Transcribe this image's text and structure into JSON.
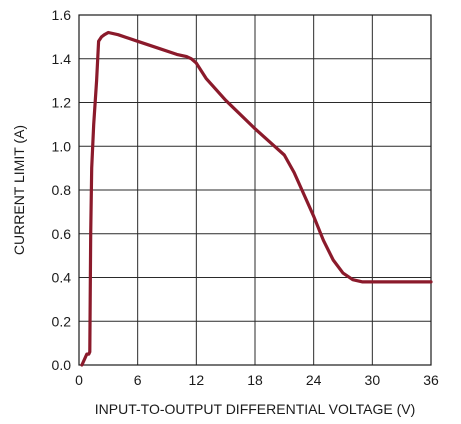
{
  "chart_data": {
    "type": "line",
    "title": "",
    "xlabel": "INPUT-TO-OUTPUT DIFFERENTIAL VOLTAGE (V)",
    "ylabel": "CURRENT LIMIT (A)",
    "xlim": [
      0,
      36
    ],
    "ylim": [
      0,
      1.6
    ],
    "x_ticks": [
      "0",
      "6",
      "12",
      "18",
      "24",
      "30",
      "36"
    ],
    "y_ticks": [
      "0.0",
      "0.2",
      "0.4",
      "0.6",
      "0.8",
      "1.0",
      "1.2",
      "1.4",
      "1.6"
    ],
    "grid": true,
    "legend": "none",
    "series_color": "#8b1a2b",
    "series": [
      {
        "x": [
          0.3,
          0.6,
          0.8,
          1.0,
          1.1,
          1.15,
          1.2,
          1.3,
          1.5,
          1.8,
          2.0,
          2.3,
          2.6,
          3.0,
          4.0,
          6.0,
          8.0,
          10.0,
          11.0,
          11.5,
          12.0,
          13.0,
          15.0,
          18.0,
          20.0,
          21.0,
          22.0,
          23.0,
          24.0,
          25.0,
          26.0,
          27.0,
          28.0,
          29.0,
          30.0,
          32.0,
          34.0,
          36.0
        ],
        "y": [
          0.0,
          0.03,
          0.05,
          0.05,
          0.06,
          0.3,
          0.6,
          0.9,
          1.1,
          1.3,
          1.48,
          1.5,
          1.51,
          1.52,
          1.51,
          1.48,
          1.45,
          1.42,
          1.41,
          1.4,
          1.38,
          1.31,
          1.21,
          1.08,
          1.0,
          0.96,
          0.88,
          0.78,
          0.68,
          0.57,
          0.48,
          0.42,
          0.39,
          0.38,
          0.38,
          0.38,
          0.38,
          0.38
        ]
      }
    ]
  }
}
